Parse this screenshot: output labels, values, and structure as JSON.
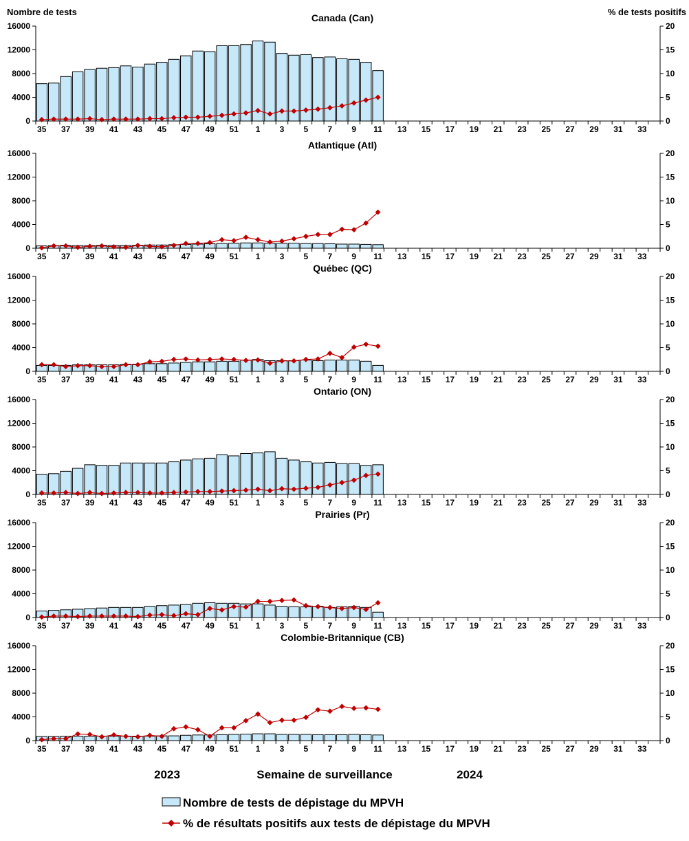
{
  "left_axis_title": "Nombre de tests",
  "right_axis_title": "% de tests positifs",
  "footer": {
    "year_left": "2023",
    "center_label": "Semaine de surveillance",
    "year_right": "2024"
  },
  "legend": {
    "bar_label": "Nombre de tests de dépistage du MPVH",
    "line_label": "% de résultats positifs aux tests de dépistage du MPVH"
  },
  "colors": {
    "bar_fill": "#c6e8f8",
    "bar_stroke": "#000000",
    "line": "#c00000",
    "axis": "#000000"
  },
  "chart_data": [
    {
      "type": "bar+line",
      "title": "Canada (Can)",
      "weeks": [
        35,
        36,
        37,
        38,
        39,
        40,
        41,
        42,
        43,
        44,
        45,
        46,
        47,
        48,
        49,
        50,
        51,
        52,
        1,
        2,
        3,
        4,
        5,
        6,
        7,
        8,
        9,
        10,
        11,
        12,
        13,
        14,
        15,
        16,
        17,
        18,
        19,
        20,
        21,
        22,
        23,
        24,
        25,
        26,
        27,
        28,
        29,
        30,
        31,
        32,
        33,
        34
      ],
      "tick_labels": [
        "35",
        "37",
        "39",
        "41",
        "43",
        "45",
        "47",
        "49",
        "51",
        "1",
        "3",
        "5",
        "7",
        "9",
        "11",
        "13",
        "15",
        "17",
        "19",
        "21",
        "23",
        "25",
        "27",
        "29",
        "31",
        "33"
      ],
      "y_left_range": [
        0,
        16000
      ],
      "y_left_ticks": [
        "0",
        "4000",
        "8000",
        "12000",
        "16000"
      ],
      "y_right_range": [
        0,
        20
      ],
      "y_right_ticks": [
        "0",
        "5",
        "10",
        "15",
        "20"
      ],
      "tests": [
        6300,
        6400,
        7500,
        8300,
        8700,
        8900,
        9000,
        9300,
        9100,
        9600,
        9900,
        10400,
        11000,
        11800,
        11700,
        12700,
        12700,
        12900,
        13500,
        13300,
        11400,
        11100,
        11200,
        10700,
        10800,
        10500,
        10400,
        9900,
        8500
      ],
      "pct_positive": [
        0.3,
        0.4,
        0.4,
        0.4,
        0.5,
        0.3,
        0.4,
        0.4,
        0.4,
        0.5,
        0.5,
        0.7,
        0.8,
        0.8,
        1.0,
        1.2,
        1.5,
        1.7,
        2.2,
        1.5,
        2.1,
        2.1,
        2.3,
        2.5,
        2.8,
        3.2,
        3.8,
        4.4,
        5.0
      ]
    },
    {
      "type": "bar+line",
      "title": "Atlantique (Atl)",
      "weeks": [
        35,
        36,
        37,
        38,
        39,
        40,
        41,
        42,
        43,
        44,
        45,
        46,
        47,
        48,
        49,
        50,
        51,
        52,
        1,
        2,
        3,
        4,
        5,
        6,
        7,
        8,
        9,
        10,
        11,
        12,
        13,
        14,
        15,
        16,
        17,
        18,
        19,
        20,
        21,
        22,
        23,
        24,
        25,
        26,
        27,
        28,
        29,
        30,
        31,
        32,
        33,
        34
      ],
      "tick_labels": [
        "35",
        "37",
        "39",
        "41",
        "43",
        "45",
        "47",
        "49",
        "51",
        "1",
        "3",
        "5",
        "7",
        "9",
        "11",
        "13",
        "15",
        "17",
        "19",
        "21",
        "23",
        "25",
        "27",
        "29",
        "31",
        "33"
      ],
      "y_left_range": [
        0,
        16000
      ],
      "y_left_ticks": [
        "0",
        "4000",
        "8000",
        "12000",
        "16000"
      ],
      "y_right_range": [
        0,
        20
      ],
      "y_right_ticks": [
        "0",
        "5",
        "10",
        "15",
        "20"
      ],
      "tests": [
        400,
        450,
        500,
        450,
        450,
        500,
        500,
        500,
        500,
        550,
        550,
        600,
        650,
        700,
        750,
        800,
        850,
        900,
        900,
        850,
        850,
        850,
        800,
        800,
        750,
        700,
        700,
        650,
        600
      ],
      "pct_positive": [
        0.1,
        0.5,
        0.5,
        0.2,
        0.4,
        0.5,
        0.3,
        0.2,
        0.6,
        0.4,
        0.3,
        0.6,
        1.0,
        1.0,
        1.2,
        1.8,
        1.6,
        2.3,
        1.8,
        1.3,
        1.5,
        2.0,
        2.5,
        2.9,
        2.9,
        4.0,
        3.9,
        5.3,
        7.6
      ]
    },
    {
      "type": "bar+line",
      "title": "Québec (QC)",
      "weeks": [
        35,
        36,
        37,
        38,
        39,
        40,
        41,
        42,
        43,
        44,
        45,
        46,
        47,
        48,
        49,
        50,
        51,
        52,
        1,
        2,
        3,
        4,
        5,
        6,
        7,
        8,
        9,
        10,
        11,
        12,
        13,
        14,
        15,
        16,
        17,
        18,
        19,
        20,
        21,
        22,
        23,
        24,
        25,
        26,
        27,
        28,
        29,
        30,
        31,
        32,
        33,
        34
      ],
      "tick_labels": [
        "35",
        "37",
        "39",
        "41",
        "43",
        "45",
        "47",
        "49",
        "51",
        "1",
        "3",
        "5",
        "7",
        "9",
        "11",
        "13",
        "15",
        "17",
        "19",
        "21",
        "23",
        "25",
        "27",
        "29",
        "31",
        "33"
      ],
      "y_left_range": [
        0,
        16000
      ],
      "y_left_ticks": [
        "0",
        "4000",
        "8000",
        "12000",
        "16000"
      ],
      "y_right_range": [
        0,
        20
      ],
      "y_right_ticks": [
        "0",
        "5",
        "10",
        "15",
        "20"
      ],
      "tests": [
        1000,
        1000,
        1000,
        1100,
        1100,
        1100,
        1100,
        1200,
        1200,
        1300,
        1300,
        1400,
        1500,
        1600,
        1600,
        1700,
        1700,
        1900,
        2000,
        1800,
        1800,
        1800,
        1900,
        1800,
        1900,
        1900,
        1900,
        1700,
        1000
      ],
      "pct_positive": [
        1.4,
        1.4,
        1.0,
        1.2,
        1.2,
        1.0,
        1.0,
        1.4,
        1.4,
        2.0,
        2.1,
        2.5,
        2.6,
        2.4,
        2.5,
        2.6,
        2.5,
        2.3,
        2.4,
        1.7,
        2.2,
        2.2,
        2.5,
        2.6,
        3.8,
        2.9,
        5.1,
        5.7,
        5.3
      ]
    },
    {
      "type": "bar+line",
      "title": "Ontario (ON)",
      "weeks": [
        35,
        36,
        37,
        38,
        39,
        40,
        41,
        42,
        43,
        44,
        45,
        46,
        47,
        48,
        49,
        50,
        51,
        52,
        1,
        2,
        3,
        4,
        5,
        6,
        7,
        8,
        9,
        10,
        11,
        12,
        13,
        14,
        15,
        16,
        17,
        18,
        19,
        20,
        21,
        22,
        23,
        24,
        25,
        26,
        27,
        28,
        29,
        30,
        31,
        32,
        33,
        34
      ],
      "tick_labels": [
        "35",
        "37",
        "39",
        "41",
        "43",
        "45",
        "47",
        "49",
        "51",
        "1",
        "3",
        "5",
        "7",
        "9",
        "11",
        "13",
        "15",
        "17",
        "19",
        "21",
        "23",
        "25",
        "27",
        "29",
        "31",
        "33"
      ],
      "y_left_range": [
        0,
        16000
      ],
      "y_left_ticks": [
        "0",
        "4000",
        "8000",
        "12000",
        "16000"
      ],
      "y_right_range": [
        0,
        20
      ],
      "y_right_ticks": [
        "0",
        "5",
        "10",
        "15",
        "20"
      ],
      "tests": [
        3400,
        3500,
        3900,
        4400,
        5000,
        4900,
        4900,
        5300,
        5300,
        5300,
        5300,
        5500,
        5800,
        6000,
        6100,
        6700,
        6500,
        6900,
        7000,
        7200,
        6100,
        5800,
        5500,
        5300,
        5400,
        5200,
        5200,
        4900,
        5000
      ],
      "pct_positive": [
        0.3,
        0.3,
        0.4,
        0.2,
        0.4,
        0.2,
        0.3,
        0.4,
        0.4,
        0.3,
        0.3,
        0.4,
        0.5,
        0.6,
        0.6,
        0.7,
        0.8,
        0.9,
        1.1,
        0.8,
        1.2,
        1.1,
        1.3,
        1.5,
        2.0,
        2.5,
        3.0,
        4.0,
        4.3
      ]
    },
    {
      "type": "bar+line",
      "title": "Prairies (Pr)",
      "weeks": [
        35,
        36,
        37,
        38,
        39,
        40,
        41,
        42,
        43,
        44,
        45,
        46,
        47,
        48,
        49,
        50,
        51,
        52,
        1,
        2,
        3,
        4,
        5,
        6,
        7,
        8,
        9,
        10,
        11,
        12,
        13,
        14,
        15,
        16,
        17,
        18,
        19,
        20,
        21,
        22,
        23,
        24,
        25,
        26,
        27,
        28,
        29,
        30,
        31,
        32,
        33,
        34
      ],
      "tick_labels": [
        "35",
        "37",
        "39",
        "41",
        "43",
        "45",
        "47",
        "49",
        "51",
        "1",
        "3",
        "5",
        "7",
        "9",
        "11",
        "13",
        "15",
        "17",
        "19",
        "21",
        "23",
        "25",
        "27",
        "29",
        "31",
        "33"
      ],
      "y_left_range": [
        0,
        16000
      ],
      "y_left_ticks": [
        "0",
        "4000",
        "8000",
        "12000",
        "16000"
      ],
      "y_right_range": [
        0,
        20
      ],
      "y_right_ticks": [
        "0",
        "5",
        "10",
        "15",
        "20"
      ],
      "tests": [
        1100,
        1200,
        1300,
        1400,
        1500,
        1600,
        1700,
        1700,
        1700,
        1900,
        2000,
        2100,
        2200,
        2400,
        2500,
        2400,
        2400,
        2300,
        2300,
        2100,
        1900,
        1800,
        1800,
        1900,
        1700,
        1800,
        1900,
        1700,
        900
      ],
      "pct_positive": [
        0.1,
        0.3,
        0.3,
        0.2,
        0.3,
        0.3,
        0.3,
        0.3,
        0.2,
        0.5,
        0.6,
        0.4,
        0.8,
        0.6,
        1.9,
        1.6,
        2.3,
        2.2,
        3.4,
        3.4,
        3.6,
        3.7,
        2.5,
        2.3,
        2.1,
        1.9,
        2.1,
        1.7,
        3.1
      ]
    },
    {
      "type": "bar+line",
      "title": "Colombie-Britannique (CB)",
      "weeks": [
        35,
        36,
        37,
        38,
        39,
        40,
        41,
        42,
        43,
        44,
        45,
        46,
        47,
        48,
        49,
        50,
        51,
        52,
        1,
        2,
        3,
        4,
        5,
        6,
        7,
        8,
        9,
        10,
        11,
        12,
        13,
        14,
        15,
        16,
        17,
        18,
        19,
        20,
        21,
        22,
        23,
        24,
        25,
        26,
        27,
        28,
        29,
        30,
        31,
        32,
        33,
        34
      ],
      "tick_labels": [
        "35",
        "37",
        "39",
        "41",
        "43",
        "45",
        "47",
        "49",
        "51",
        "1",
        "3",
        "5",
        "7",
        "9",
        "11",
        "13",
        "15",
        "17",
        "19",
        "21",
        "23",
        "25",
        "27",
        "29",
        "31",
        "33"
      ],
      "y_left_range": [
        0,
        16000
      ],
      "y_left_ticks": [
        "0",
        "4000",
        "8000",
        "12000",
        "16000"
      ],
      "y_right_range": [
        0,
        20
      ],
      "y_right_ticks": [
        "0",
        "5",
        "10",
        "15",
        "20"
      ],
      "tests": [
        700,
        700,
        750,
        750,
        750,
        750,
        750,
        750,
        750,
        750,
        800,
        800,
        900,
        950,
        950,
        1000,
        1050,
        1100,
        1150,
        1150,
        1050,
        1050,
        1050,
        1000,
        1000,
        1000,
        1050,
        1000,
        950
      ],
      "pct_positive": [
        0.2,
        0.4,
        0.4,
        1.4,
        1.3,
        0.8,
        1.2,
        0.9,
        0.8,
        1.1,
        0.9,
        2.5,
        2.9,
        2.3,
        0.9,
        2.7,
        2.7,
        4.2,
        5.6,
        3.8,
        4.3,
        4.3,
        4.9,
        6.5,
        6.2,
        7.2,
        6.8,
        6.9,
        6.6
      ]
    }
  ]
}
